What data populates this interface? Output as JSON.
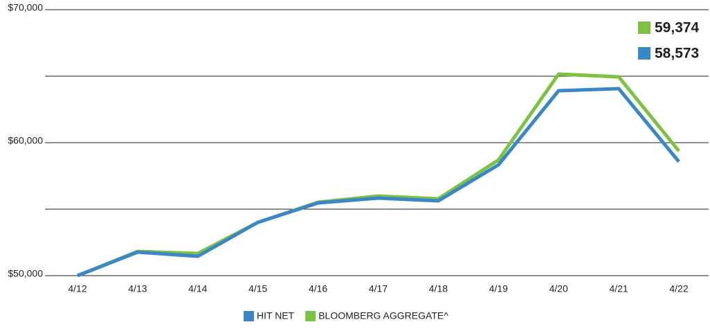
{
  "chart_data": {
    "type": "line",
    "categories": [
      "4/12",
      "4/13",
      "4/14",
      "4/15",
      "4/16",
      "4/17",
      "4/18",
      "4/19",
      "4/20",
      "4/21",
      "4/22"
    ],
    "series": [
      {
        "name": "HIT NET",
        "color": "#3a87c8",
        "end_label": "58,573",
        "values": [
          50000,
          51771,
          51458,
          54010,
          55469,
          55833,
          55625,
          58333,
          63906,
          64063,
          58573
        ]
      },
      {
        "name": "BLOOMBERG AGGREGATE^",
        "color": "#7dc242",
        "end_label": "59,374",
        "values": [
          50000,
          51823,
          51667,
          54010,
          55521,
          55990,
          55781,
          58698,
          65156,
          64948,
          59374
        ]
      }
    ],
    "ylim": [
      50000,
      70000
    ],
    "yticks": [
      {
        "value": 50000,
        "label": "$50,000"
      },
      {
        "value": 55000,
        "label": null
      },
      {
        "value": 60000,
        "label": "$60,000"
      },
      {
        "value": 65000,
        "label": null
      },
      {
        "value": 70000,
        "label": "$70,000"
      }
    ],
    "grid": true
  }
}
